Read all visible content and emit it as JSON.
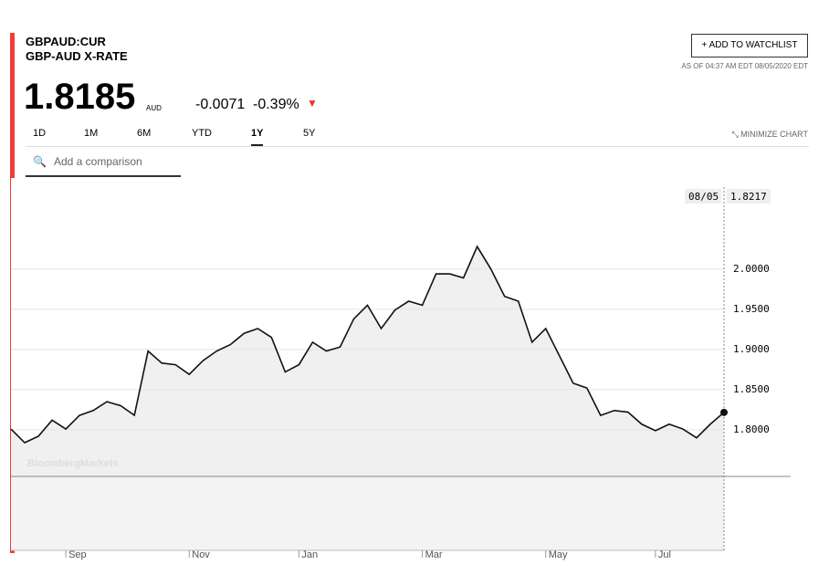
{
  "header": {
    "ticker": "GBPAUD:CUR",
    "name": "GBP-AUD X-RATE",
    "price": "1.8185",
    "currency": "AUD",
    "change": "-0.0071",
    "change_pct": "-0.39%",
    "watchlist": "ADD TO WATCHLIST",
    "as_of": "AS OF 04:37 AM EDT 08/05/2020 EDT",
    "minimize": "MINIMIZE CHART",
    "search": "Add a comparison",
    "ranges": [
      "1D",
      "1M",
      "6M",
      "YTD",
      "1Y",
      "5Y"
    ],
    "active_range": "1Y",
    "watermark": "BloombergMarkets",
    "cursor_date": "08/05",
    "cursor_value": "1.8217"
  },
  "chart_data": {
    "type": "line",
    "color": "#111111",
    "categories": [
      null,
      null,
      null,
      null,
      "Sep",
      null,
      null,
      null,
      null,
      null,
      null,
      null,
      null,
      "Nov",
      null,
      null,
      null,
      null,
      null,
      null,
      null,
      "Jan",
      null,
      null,
      null,
      null,
      null,
      null,
      null,
      null,
      "Mar",
      null,
      null,
      null,
      null,
      null,
      null,
      null,
      null,
      "May",
      null,
      null,
      null,
      null,
      null,
      null,
      null,
      "Jul",
      null,
      null,
      null,
      null,
      null
    ],
    "values": [
      1.801,
      1.784,
      1.792,
      1.812,
      1.801,
      1.818,
      1.824,
      1.835,
      1.83,
      1.818,
      1.898,
      1.883,
      1.881,
      1.869,
      1.886,
      1.898,
      1.906,
      1.92,
      1.926,
      1.915,
      1.872,
      1.881,
      1.909,
      1.898,
      1.903,
      1.938,
      1.955,
      1.926,
      1.949,
      1.96,
      1.955,
      1.994,
      1.994,
      1.989,
      2.028,
      2.0,
      1.966,
      1.96,
      1.909,
      1.926,
      1.892,
      1.858,
      1.852,
      1.818,
      1.824,
      1.822,
      1.807,
      1.799,
      1.807,
      1.801,
      1.79,
      1.807,
      1.8217
    ],
    "ylim": [
      1.742,
      2.102
    ],
    "yticks": [
      {
        "value": 1.8,
        "label": "1.8000"
      },
      {
        "value": 1.85,
        "label": "1.8500"
      },
      {
        "value": 1.9,
        "label": "1.9000"
      },
      {
        "value": 1.95,
        "label": "1.9500"
      },
      {
        "value": 2.0,
        "label": "2.0000"
      }
    ],
    "grid": true
  }
}
